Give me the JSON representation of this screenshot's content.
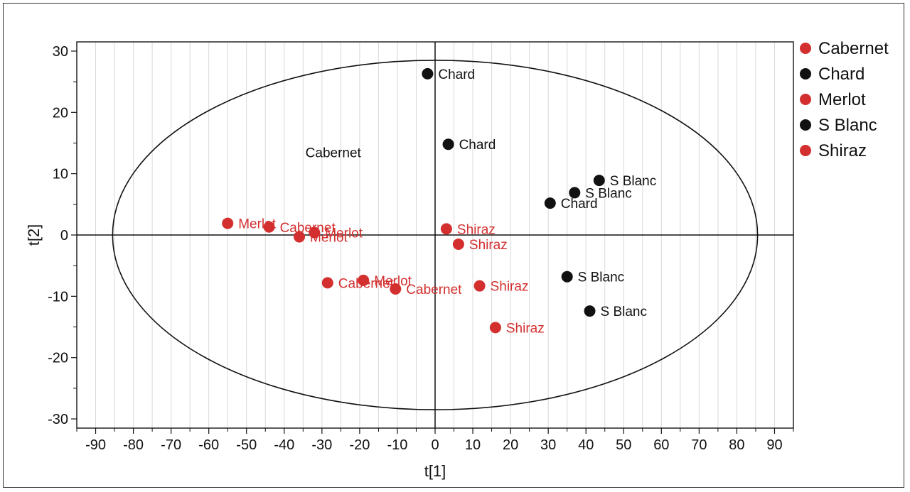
{
  "chart_data": {
    "type": "scatter",
    "xlabel": "t[1]",
    "ylabel": "t[2]",
    "xlim": [
      -95,
      95
    ],
    "ylim": [
      -31.5,
      31.5
    ],
    "xticks": [
      -90,
      -80,
      -70,
      -60,
      -50,
      -40,
      -30,
      -20,
      -10,
      0,
      10,
      20,
      30,
      40,
      50,
      60,
      70,
      80,
      90
    ],
    "yticks": [
      -30,
      -20,
      -10,
      0,
      10,
      20,
      30
    ],
    "grid": "vertical",
    "legend_position": "right",
    "ellipse": {
      "rx": 85.5,
      "ry": 28.5
    },
    "annotation": {
      "text": "Cabernet",
      "x": -27,
      "y": 13.5
    },
    "colors": {
      "red": "#d32f2f",
      "black": "#111111"
    },
    "series": [
      {
        "name": "Cabernet",
        "color": "#d32f2f",
        "points": [
          {
            "x": -44,
            "y": 1.3
          },
          {
            "x": -28.5,
            "y": -7.8
          },
          {
            "x": -10.5,
            "y": -8.8
          }
        ]
      },
      {
        "name": "Chard",
        "color": "#111111",
        "points": [
          {
            "x": -2,
            "y": 26.3
          },
          {
            "x": 3.5,
            "y": 14.8
          },
          {
            "x": 30.5,
            "y": 5.2
          }
        ]
      },
      {
        "name": "Merlot",
        "color": "#d32f2f",
        "points": [
          {
            "x": -55,
            "y": 1.9
          },
          {
            "x": -32,
            "y": 0.4
          },
          {
            "x": -36,
            "y": -0.3
          },
          {
            "x": -19,
            "y": -7.4
          }
        ]
      },
      {
        "name": "S Blanc",
        "color": "#111111",
        "points": [
          {
            "x": 43.5,
            "y": 8.9
          },
          {
            "x": 37,
            "y": 6.9
          },
          {
            "x": 35,
            "y": -6.8
          },
          {
            "x": 41,
            "y": -12.4
          }
        ]
      },
      {
        "name": "Shiraz",
        "color": "#d32f2f",
        "points": [
          {
            "x": 3,
            "y": 1.0
          },
          {
            "x": 6.2,
            "y": -1.5
          },
          {
            "x": 11.8,
            "y": -8.3
          },
          {
            "x": 16,
            "y": -15.1
          }
        ]
      }
    ]
  }
}
